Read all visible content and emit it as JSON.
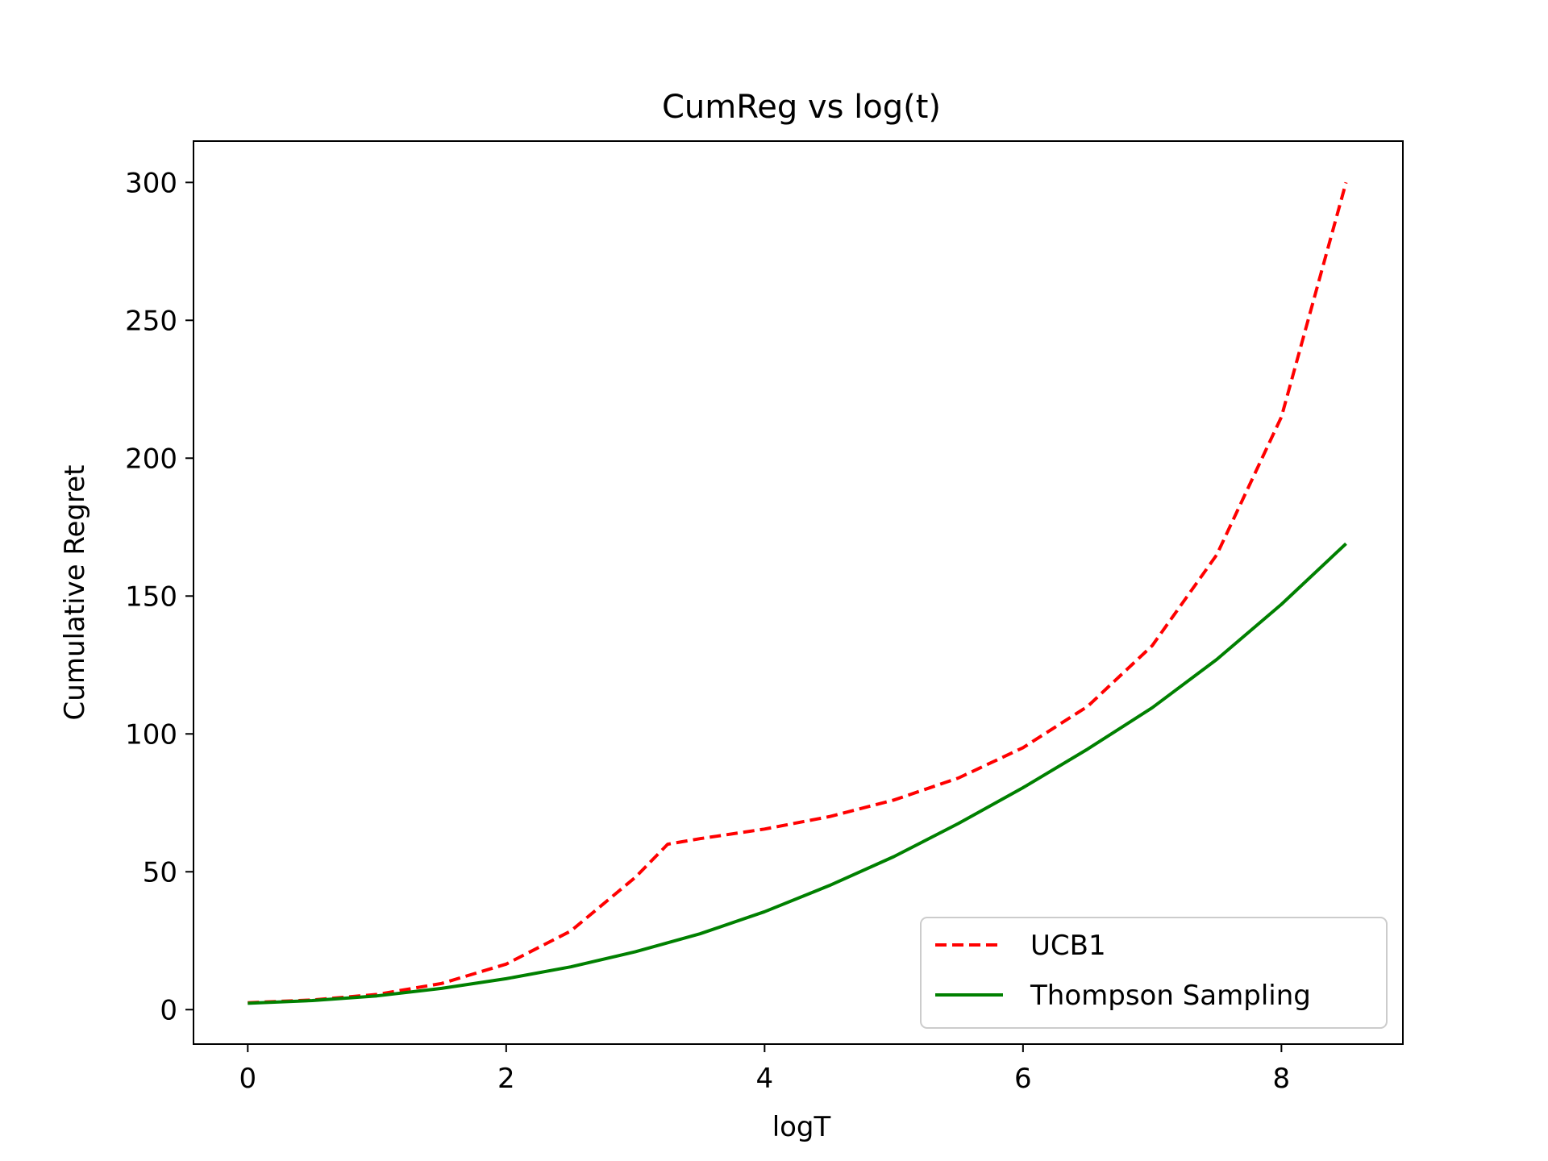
{
  "chart_data": {
    "type": "line",
    "title": "CumReg vs log(t)",
    "xlabel": "logT",
    "ylabel": "Cumulative Regret",
    "xlim": [
      -0.42,
      8.94
    ],
    "ylim": [
      -12.5,
      315
    ],
    "xticks": [
      0,
      2,
      4,
      6,
      8
    ],
    "yticks": [
      0,
      50,
      100,
      150,
      200,
      250,
      300
    ],
    "grid": false,
    "legend_position": "lower-right",
    "series": [
      {
        "name": "UCB1",
        "color": "#ff0000",
        "style": "dashed",
        "x": [
          0,
          0.5,
          1.0,
          1.5,
          2.0,
          2.5,
          3.0,
          3.25,
          3.5,
          4.0,
          4.5,
          5.0,
          5.5,
          6.0,
          6.5,
          7.0,
          7.5,
          8.0,
          8.5
        ],
        "y": [
          2.5,
          3.5,
          5.5,
          9.5,
          16.5,
          28.5,
          48,
          60,
          62,
          65.5,
          70,
          76,
          84,
          95,
          110,
          132,
          165,
          215,
          300
        ]
      },
      {
        "name": "Thompson Sampling",
        "color": "#008000",
        "style": "solid",
        "x": [
          0,
          0.5,
          1.0,
          1.5,
          2.0,
          2.5,
          3.0,
          3.5,
          4.0,
          4.5,
          5.0,
          5.5,
          6.0,
          6.5,
          7.0,
          7.5,
          8.0,
          8.5
        ],
        "y": [
          2.3,
          3.3,
          5.0,
          7.7,
          11.2,
          15.5,
          21.0,
          27.5,
          35.5,
          45.0,
          55.5,
          67.5,
          80.5,
          94.5,
          109.5,
          127.0,
          147.0,
          169.0
        ]
      }
    ]
  }
}
